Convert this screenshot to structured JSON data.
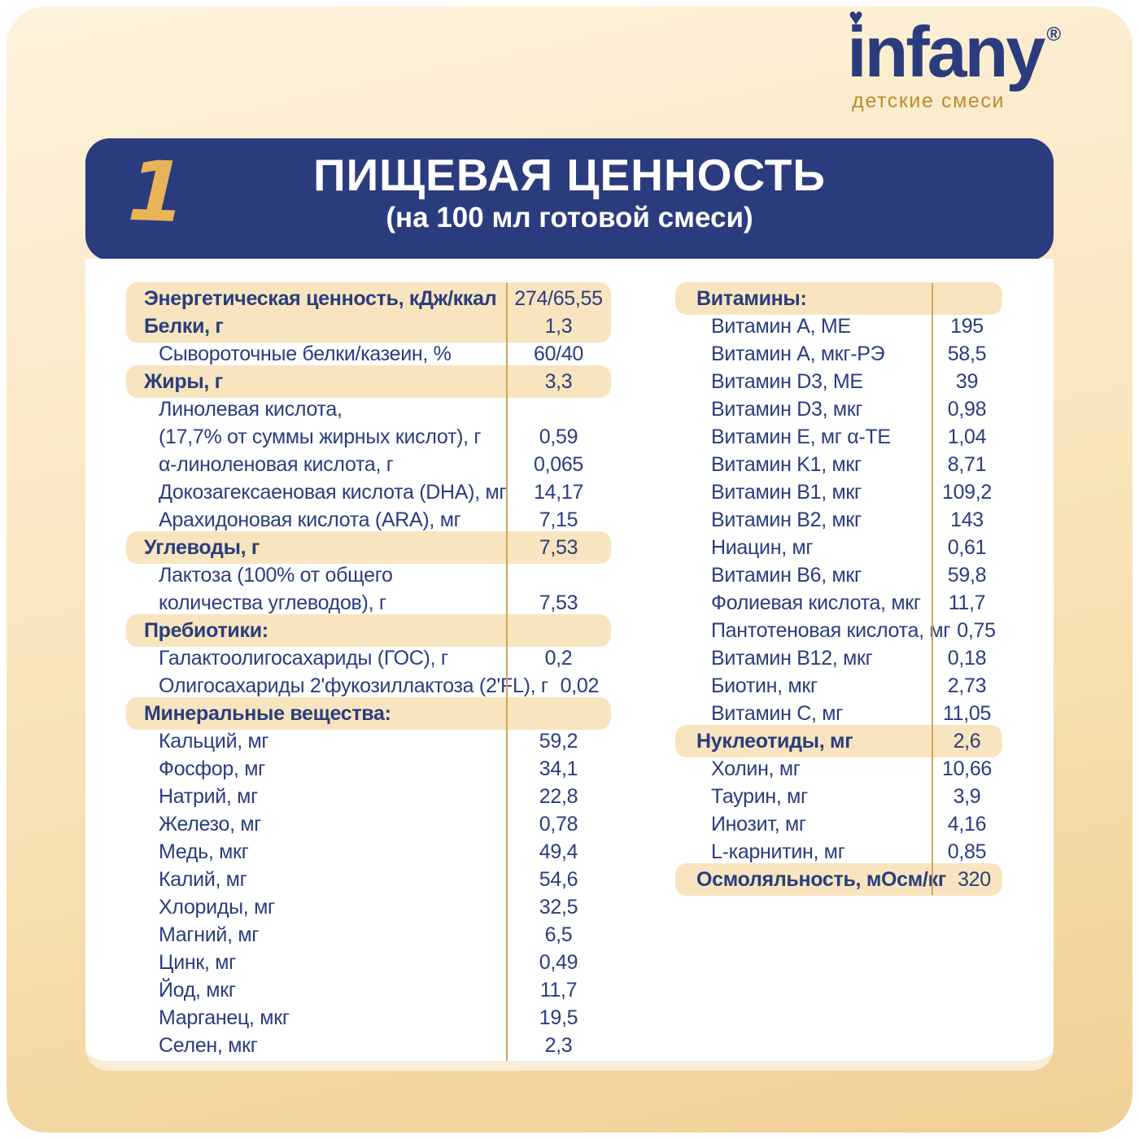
{
  "brand": {
    "logo_text": "infany",
    "registered_mark": "®",
    "tagline": "детские смеси",
    "heart_icon": "♥"
  },
  "header": {
    "step_number": "1",
    "title": "ПИЩЕВАЯ ЦЕННОСТЬ",
    "subtitle": "(на 100 мл готовой смеси)"
  },
  "colors": {
    "navy_text": "#2B3C7E",
    "banner_bg": "#2B3C7E",
    "highlight_band": "#F8E5BF",
    "separator_line": "#D2A45A",
    "tagline_gold": "#BE8B2D",
    "numeral_gold": "#E9B357",
    "card_gradient_top": "#FDF3DC",
    "card_gradient_bottom": "#F1D096",
    "panel_bg": "#FFFFFF"
  },
  "left_table": {
    "rows": [
      {
        "label": "Энергетическая ценность, кДж/ккал",
        "value": "274/65,55",
        "style": "section",
        "hl": true
      },
      {
        "label": "Белки, г",
        "value": "1,3",
        "style": "section",
        "hl": true
      },
      {
        "label": "Сывороточные белки/казеин, %",
        "value": "60/40",
        "style": "item",
        "hl": false
      },
      {
        "label": "Жиры, г",
        "value": "3,3",
        "style": "section",
        "hl": true
      },
      {
        "label": "Линолевая кислота,",
        "value": "",
        "style": "item",
        "hl": false
      },
      {
        "label": "(17,7% от суммы жирных кислот), г",
        "value": "0,59",
        "style": "item",
        "hl": false
      },
      {
        "label": "α-линоленовая кислота, г",
        "value": "0,065",
        "style": "item",
        "hl": false
      },
      {
        "label": "Докозагексаеновая кислота (DHA), мг",
        "value": "14,17",
        "style": "item",
        "hl": false
      },
      {
        "label": "Арахидоновая кислота (ARA), мг",
        "value": "7,15",
        "style": "item",
        "hl": false
      },
      {
        "label": "Углеводы, г",
        "value": "7,53",
        "style": "section",
        "hl": true
      },
      {
        "label": "Лактоза (100% от общего",
        "value": "",
        "style": "item",
        "hl": false
      },
      {
        "label": "количества углеводов), г",
        "value": "7,53",
        "style": "item",
        "hl": false
      },
      {
        "label": "Пребиотики:",
        "value": "",
        "style": "section",
        "hl": true
      },
      {
        "label": "Галактоолигосахариды (ГОС), г",
        "value": "0,2",
        "style": "item",
        "hl": false
      },
      {
        "label": "Олигосахариды 2'фукозиллактоза (2'FL), г",
        "value": "0,02",
        "style": "item",
        "hl": false
      },
      {
        "label": "Минеральные вещества:",
        "value": "",
        "style": "section",
        "hl": true
      },
      {
        "label": "Кальций, мг",
        "value": "59,2",
        "style": "item",
        "hl": false
      },
      {
        "label": "Фосфор, мг",
        "value": "34,1",
        "style": "item",
        "hl": false
      },
      {
        "label": "Натрий, мг",
        "value": "22,8",
        "style": "item",
        "hl": false
      },
      {
        "label": "Железо, мг",
        "value": "0,78",
        "style": "item",
        "hl": false
      },
      {
        "label": "Медь, мкг",
        "value": "49,4",
        "style": "item",
        "hl": false
      },
      {
        "label": "Калий, мг",
        "value": "54,6",
        "style": "item",
        "hl": false
      },
      {
        "label": "Хлориды, мг",
        "value": "32,5",
        "style": "item",
        "hl": false
      },
      {
        "label": "Магний, мг",
        "value": "6,5",
        "style": "item",
        "hl": false
      },
      {
        "label": "Цинк, мг",
        "value": "0,49",
        "style": "item",
        "hl": false
      },
      {
        "label": "Йод, мкг",
        "value": "11,7",
        "style": "item",
        "hl": false
      },
      {
        "label": "Марганец, мкг",
        "value": "19,5",
        "style": "item",
        "hl": false
      },
      {
        "label": "Селен, мкг",
        "value": "2,3",
        "style": "item",
        "hl": false
      }
    ]
  },
  "right_table": {
    "rows": [
      {
        "label": "Витамины:",
        "value": "",
        "style": "section",
        "hl": true
      },
      {
        "label": "Витамин A, МЕ",
        "value": "195",
        "style": "item",
        "hl": false
      },
      {
        "label": "Витамин A, мкг-РЭ",
        "value": "58,5",
        "style": "item",
        "hl": false
      },
      {
        "label": "Витамин D3, МЕ",
        "value": "39",
        "style": "item",
        "hl": false
      },
      {
        "label": "Витамин D3, мкг",
        "value": "0,98",
        "style": "item",
        "hl": false
      },
      {
        "label": "Витамин E, мг α-ТЕ",
        "value": "1,04",
        "style": "item",
        "hl": false
      },
      {
        "label": "Витамин K1, мкг",
        "value": "8,71",
        "style": "item",
        "hl": false
      },
      {
        "label": "Витамин B1, мкг",
        "value": "109,2",
        "style": "item",
        "hl": false
      },
      {
        "label": "Витамин B2, мкг",
        "value": "143",
        "style": "item",
        "hl": false
      },
      {
        "label": "Ниацин, мг",
        "value": "0,61",
        "style": "item",
        "hl": false
      },
      {
        "label": "Витамин B6, мкг",
        "value": "59,8",
        "style": "item",
        "hl": false
      },
      {
        "label": "Фолиевая кислота, мкг",
        "value": "11,7",
        "style": "item",
        "hl": false
      },
      {
        "label": "Пантотеновая кислота, мг",
        "value": "0,75",
        "style": "item",
        "hl": false
      },
      {
        "label": "Витамин B12, мкг",
        "value": "0,18",
        "style": "item",
        "hl": false
      },
      {
        "label": "Биотин, мкг",
        "value": "2,73",
        "style": "item",
        "hl": false
      },
      {
        "label": "Витамин C, мг",
        "value": "11,05",
        "style": "item",
        "hl": false
      },
      {
        "label": "Нуклеотиды, мг",
        "value": "2,6",
        "style": "section",
        "hl": true
      },
      {
        "label": "Холин, мг",
        "value": "10,66",
        "style": "item",
        "hl": false
      },
      {
        "label": "Таурин, мг",
        "value": "3,9",
        "style": "item",
        "hl": false
      },
      {
        "label": "Инозит, мг",
        "value": "4,16",
        "style": "item",
        "hl": false
      },
      {
        "label": "L-карнитин, мг",
        "value": "0,85",
        "style": "item",
        "hl": false
      },
      {
        "label": "Осмоляльность, мОсм/кг",
        "value": "320",
        "style": "section",
        "hl": true
      }
    ]
  }
}
